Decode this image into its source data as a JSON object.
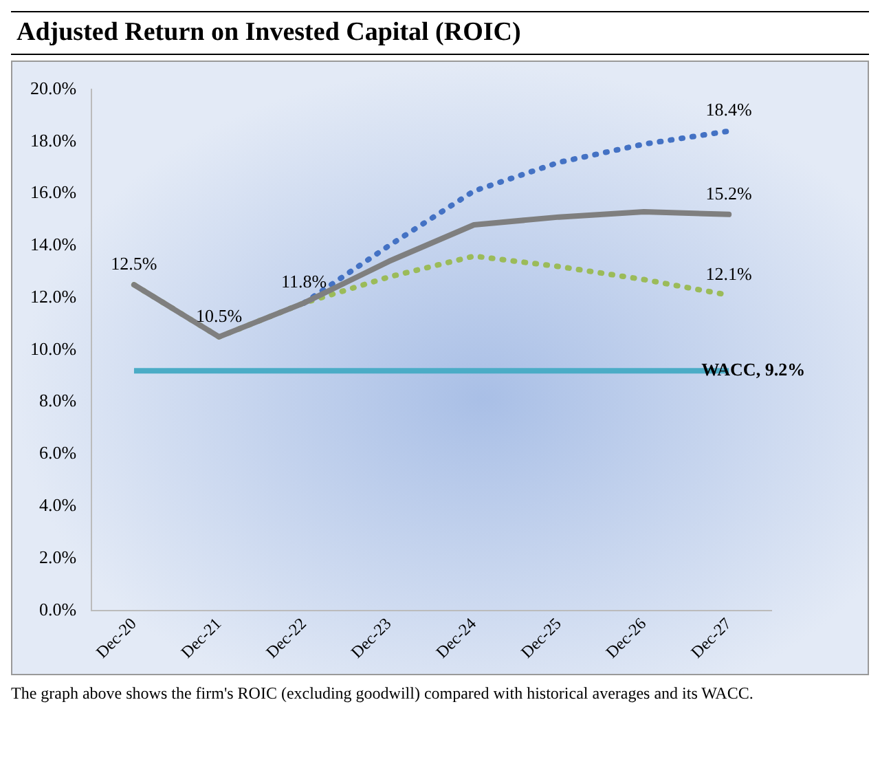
{
  "chart_data": {
    "type": "line",
    "title": "Adjusted Return on Invested Capital (ROIC)",
    "categories": [
      "Dec-20",
      "Dec-21",
      "Dec-22",
      "Dec-23",
      "Dec-24",
      "Dec-25",
      "Dec-26",
      "Dec-27"
    ],
    "series": [
      {
        "color": "#7f7f7f",
        "line_style": "solid",
        "values": [
          12.5,
          10.5,
          11.8,
          13.4,
          14.8,
          15.1,
          15.3,
          15.2
        ]
      },
      {
        "color": "#4472c4",
        "line_style": "dotted",
        "values": [
          null,
          null,
          11.8,
          14.0,
          16.1,
          17.2,
          17.9,
          18.4
        ]
      },
      {
        "color": "#9bbb59",
        "line_style": "dotted",
        "values": [
          12.5,
          10.5,
          11.8,
          12.8,
          13.6,
          13.2,
          12.7,
          12.1
        ]
      }
    ],
    "ylim": [
      0,
      20
    ],
    "yticks": [
      {
        "value": 0,
        "label": "0.0%"
      },
      {
        "value": 2,
        "label": "2.0%"
      },
      {
        "value": 4,
        "label": "4.0%"
      },
      {
        "value": 6,
        "label": "6.0%"
      },
      {
        "value": 8,
        "label": "8.0%"
      },
      {
        "value": 10,
        "label": "10.0%"
      },
      {
        "value": 12,
        "label": "12.0%"
      },
      {
        "value": 14,
        "label": "14.0%"
      },
      {
        "value": 16,
        "label": "16.0%"
      },
      {
        "value": 18,
        "label": "18.0%"
      },
      {
        "value": 20,
        "label": "20.0%"
      }
    ],
    "ref_lines": [
      {
        "axis": "y",
        "value": 9.2,
        "label": "WACC, 9.2%",
        "color": "#4bacc6"
      }
    ],
    "annotations": [
      {
        "text": "12.5%",
        "x": "Dec-20",
        "y": 12.5
      },
      {
        "text": "10.5%",
        "x": "Dec-21",
        "y": 10.5
      },
      {
        "text": "11.8%",
        "x": "Dec-22",
        "y": 11.8
      },
      {
        "text": "18.4%",
        "x": "Dec-27",
        "y": 18.4
      },
      {
        "text": "15.2%",
        "x": "Dec-27",
        "y": 15.2
      },
      {
        "text": "12.1%",
        "x": "Dec-27",
        "y": 12.1
      },
      "The graph above shows the firm's ROIC (excluding goodwill) compared with historical averages and its WACC."
    ],
    "grid": false,
    "legend": false,
    "marker": "none"
  }
}
